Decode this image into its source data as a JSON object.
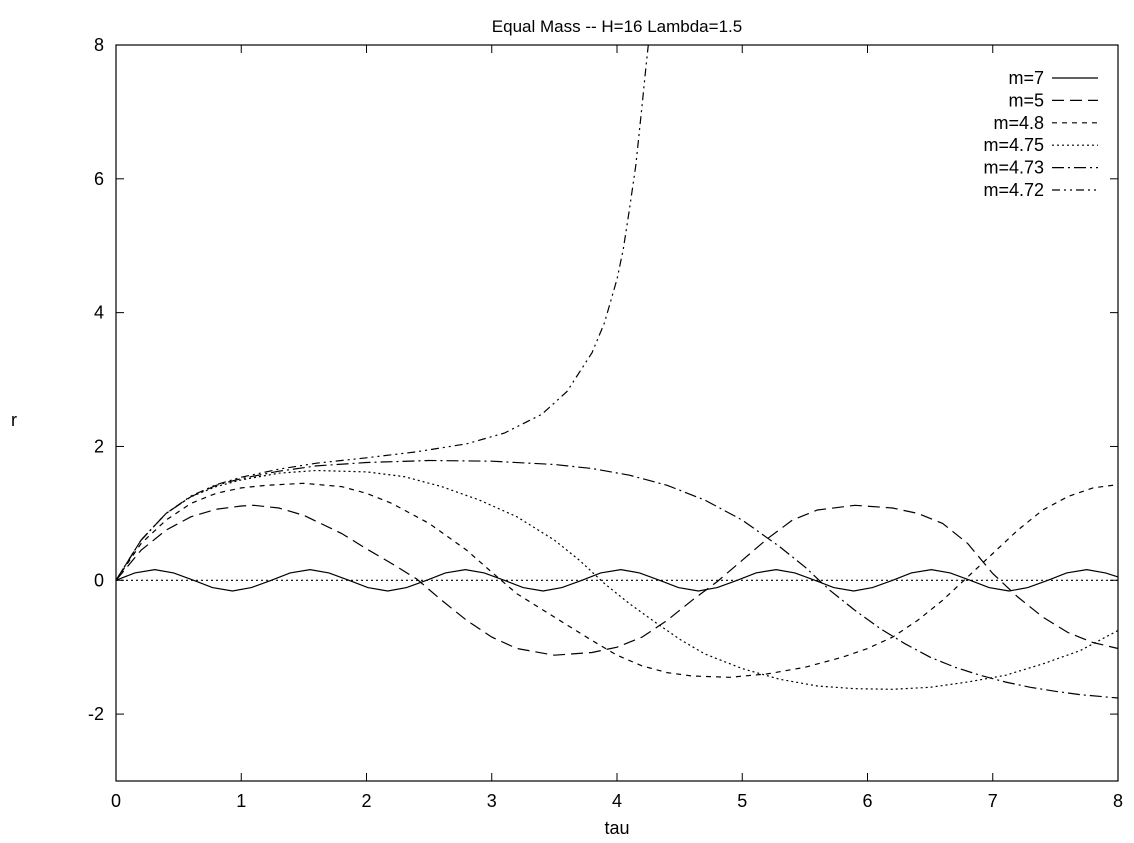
{
  "chart_data": {
    "type": "line",
    "title": "Equal Mass -- H=16  Lambda=1.5",
    "xlabel": "tau",
    "ylabel": "r",
    "xlim": [
      0,
      8
    ],
    "ylim": [
      -3,
      8
    ],
    "xticks": [
      0,
      1,
      2,
      3,
      4,
      5,
      6,
      7,
      8
    ],
    "yticks": [
      -2,
      0,
      2,
      4,
      6,
      8
    ],
    "grid": false,
    "legend_position": "top-right",
    "series": [
      {
        "name": "m=7",
        "dash": "solid",
        "x": [
          0,
          0.15,
          0.31,
          0.46,
          0.62,
          0.77,
          0.93,
          1.08,
          1.24,
          1.39,
          1.55,
          1.7,
          1.86,
          2.01,
          2.17,
          2.32,
          2.48,
          2.63,
          2.79,
          2.94,
          3.1,
          3.25,
          3.41,
          3.56,
          3.72,
          3.87,
          4.03,
          4.18,
          4.34,
          4.49,
          4.65,
          4.8,
          4.96,
          5.11,
          5.27,
          5.42,
          5.58,
          5.73,
          5.89,
          6.04,
          6.2,
          6.35,
          6.51,
          6.66,
          6.82,
          6.97,
          7.13,
          7.28,
          7.44,
          7.59,
          7.75,
          7.9,
          8.0
        ],
        "y": [
          0,
          0.11,
          0.16,
          0.11,
          0,
          -0.11,
          -0.16,
          -0.11,
          0,
          0.11,
          0.16,
          0.11,
          0,
          -0.11,
          -0.16,
          -0.11,
          0,
          0.11,
          0.16,
          0.11,
          0,
          -0.11,
          -0.16,
          -0.11,
          0,
          0.11,
          0.16,
          0.11,
          0,
          -0.11,
          -0.16,
          -0.11,
          0,
          0.11,
          0.16,
          0.11,
          0,
          -0.11,
          -0.16,
          -0.11,
          0,
          0.11,
          0.16,
          0.11,
          0,
          -0.11,
          -0.16,
          -0.11,
          0,
          0.11,
          0.16,
          0.11,
          0.05
        ]
      },
      {
        "name": "m=5",
        "dash": "12,6",
        "x": [
          0,
          0.2,
          0.4,
          0.6,
          0.8,
          1.0,
          1.1,
          1.3,
          1.5,
          1.8,
          2.0,
          2.2,
          2.4,
          2.6,
          2.8,
          3.0,
          3.2,
          3.5,
          3.8,
          4.0,
          4.2,
          4.4,
          4.6,
          4.8,
          5.0,
          5.2,
          5.4,
          5.6,
          5.9,
          6.2,
          6.4,
          6.6,
          6.8,
          7.0,
          7.2,
          7.4,
          7.6,
          7.8,
          8.0
        ],
        "y": [
          0,
          0.45,
          0.75,
          0.95,
          1.06,
          1.11,
          1.12,
          1.08,
          0.97,
          0.7,
          0.47,
          0.25,
          0.02,
          -0.3,
          -0.6,
          -0.85,
          -1.02,
          -1.12,
          -1.08,
          -1.0,
          -0.85,
          -0.6,
          -0.3,
          -0.02,
          0.3,
          0.62,
          0.9,
          1.05,
          1.12,
          1.08,
          1.0,
          0.85,
          0.55,
          0.1,
          -0.25,
          -0.55,
          -0.78,
          -0.93,
          -1.02
        ]
      },
      {
        "name": "m=4.8",
        "dash": "5,5",
        "x": [
          0,
          0.2,
          0.4,
          0.6,
          0.8,
          1.0,
          1.2,
          1.5,
          1.8,
          2.0,
          2.2,
          2.5,
          2.8,
          3.0,
          3.2,
          3.5,
          3.8,
          4.0,
          4.2,
          4.4,
          4.6,
          4.9,
          5.2,
          5.5,
          5.8,
          6.0,
          6.2,
          6.4,
          6.6,
          6.8,
          7.0,
          7.2,
          7.4,
          7.6,
          7.8,
          8.0
        ],
        "y": [
          0,
          0.55,
          0.9,
          1.15,
          1.3,
          1.38,
          1.42,
          1.45,
          1.4,
          1.3,
          1.15,
          0.85,
          0.45,
          0.12,
          -0.2,
          -0.55,
          -0.9,
          -1.12,
          -1.28,
          -1.38,
          -1.43,
          -1.45,
          -1.4,
          -1.3,
          -1.15,
          -1.02,
          -0.85,
          -0.6,
          -0.3,
          0.05,
          0.4,
          0.75,
          1.05,
          1.25,
          1.38,
          1.43
        ]
      },
      {
        "name": "m=4.75",
        "dash": "2,3",
        "x": [
          0,
          0.2,
          0.4,
          0.6,
          0.8,
          1.0,
          1.3,
          1.6,
          2.0,
          2.3,
          2.6,
          2.9,
          3.2,
          3.5,
          3.7,
          3.9,
          4.1,
          4.3,
          4.5,
          4.7,
          5.0,
          5.3,
          5.6,
          5.9,
          6.2,
          6.5,
          6.8,
          7.1,
          7.4,
          7.7,
          8.0
        ],
        "y": [
          0,
          0.6,
          1.0,
          1.25,
          1.4,
          1.5,
          1.6,
          1.64,
          1.62,
          1.55,
          1.4,
          1.2,
          0.95,
          0.6,
          0.3,
          -0.05,
          -0.35,
          -0.62,
          -0.88,
          -1.1,
          -1.32,
          -1.48,
          -1.58,
          -1.62,
          -1.63,
          -1.6,
          -1.52,
          -1.42,
          -1.25,
          -1.05,
          -0.75
        ]
      },
      {
        "name": "m=4.73",
        "dash": "12,4,2,4",
        "x": [
          0,
          0.2,
          0.4,
          0.6,
          0.8,
          1.0,
          1.3,
          1.6,
          2.0,
          2.5,
          3.0,
          3.5,
          3.8,
          4.1,
          4.4,
          4.7,
          5.0,
          5.3,
          5.5,
          5.7,
          5.9,
          6.1,
          6.3,
          6.5,
          6.7,
          6.9,
          7.1,
          7.3,
          7.5,
          7.7,
          8.0
        ],
        "y": [
          0,
          0.6,
          1.0,
          1.25,
          1.42,
          1.52,
          1.63,
          1.71,
          1.76,
          1.79,
          1.78,
          1.73,
          1.67,
          1.57,
          1.42,
          1.2,
          0.9,
          0.5,
          0.2,
          -0.15,
          -0.45,
          -0.72,
          -0.95,
          -1.15,
          -1.3,
          -1.42,
          -1.52,
          -1.6,
          -1.66,
          -1.71,
          -1.76
        ]
      },
      {
        "name": "m=4.72",
        "dash": "8,4,2,4,2,4",
        "x": [
          0,
          0.2,
          0.4,
          0.6,
          0.8,
          1.0,
          1.3,
          1.6,
          2.0,
          2.4,
          2.8,
          3.1,
          3.4,
          3.6,
          3.8,
          3.9,
          4.0,
          4.05,
          4.1,
          4.15,
          4.2,
          4.23,
          4.25
        ],
        "y": [
          0,
          0.6,
          1.0,
          1.26,
          1.43,
          1.54,
          1.66,
          1.75,
          1.83,
          1.92,
          2.04,
          2.2,
          2.48,
          2.82,
          3.4,
          3.85,
          4.5,
          4.95,
          5.55,
          6.2,
          7.1,
          7.65,
          8.0
        ]
      },
      {
        "name": "",
        "dash": "2,3",
        "x": [
          0,
          8
        ],
        "y": [
          0,
          0
        ]
      }
    ]
  }
}
